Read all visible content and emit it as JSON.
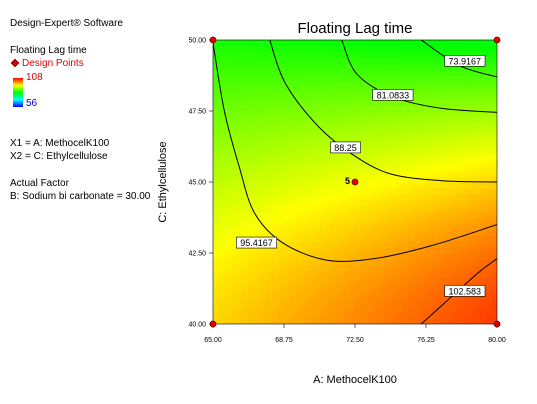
{
  "software": "Design-Expert® Software",
  "legend": {
    "response_title": "Floating Lag time",
    "design_points_label": "Design Points",
    "colorbar_max": "108",
    "colorbar_min": "56"
  },
  "factors": {
    "x1": "X1 = A: MethocelK100",
    "x2": "X2 = C: Ethylcellulose"
  },
  "actual_factor": {
    "heading": "Actual Factor",
    "value": "B: Sodium bi carbonate = 30.00"
  },
  "chart_data": {
    "type": "heatmap",
    "subtype": "contour",
    "title": "Floating Lag time",
    "xlabel": "A: MethocelK100",
    "ylabel": "C: Ethylcellulose",
    "xlim": [
      65.0,
      80.0
    ],
    "ylim": [
      40.0,
      50.0
    ],
    "x_ticks": [
      "65.00",
      "68.75",
      "72.50",
      "76.25",
      "80.00"
    ],
    "y_ticks": [
      "40.00",
      "42.50",
      "45.00",
      "47.50",
      "50.00"
    ],
    "colorbar_range": [
      56,
      108
    ],
    "colors": {
      "high": "#ff0000",
      "mid_high": "#ffff00",
      "mid": "#00ff00",
      "low": "#00ffff",
      "lowest": "#0000ff"
    },
    "contour_levels": [
      {
        "label": "73.9167",
        "level": 73.9167,
        "label_at": [
          78.3,
          49.25
        ],
        "points": [
          [
            76.0,
            50.0
          ],
          [
            78.0,
            49.1
          ],
          [
            80.0,
            48.7
          ]
        ]
      },
      {
        "label": "81.0833",
        "level": 81.0833,
        "label_at": [
          74.5,
          48.05
        ],
        "points": [
          [
            71.8,
            50.0
          ],
          [
            72.6,
            48.8
          ],
          [
            74.5,
            48.0
          ],
          [
            77.0,
            47.6
          ],
          [
            80.0,
            47.45
          ]
        ]
      },
      {
        "label": "88.25",
        "level": 88.25,
        "label_at": [
          72.0,
          46.2
        ],
        "points": [
          [
            68.0,
            50.0
          ],
          [
            68.8,
            48.5
          ],
          [
            70.5,
            47.0
          ],
          [
            72.3,
            46.0
          ],
          [
            74.3,
            45.3
          ],
          [
            77.0,
            45.05
          ],
          [
            80.0,
            45.0
          ]
        ]
      },
      {
        "label": "95.4167",
        "level": 95.4167,
        "label_at": [
          67.3,
          42.85
        ],
        "points": [
          [
            65.0,
            49.9
          ],
          [
            65.6,
            47.5
          ],
          [
            66.4,
            45.5
          ],
          [
            67.2,
            43.9
          ],
          [
            68.7,
            42.85
          ],
          [
            71.0,
            42.25
          ],
          [
            73.5,
            42.3
          ],
          [
            76.5,
            42.75
          ],
          [
            80.0,
            43.5
          ]
        ]
      },
      {
        "label": "102.583",
        "level": 102.583,
        "label_at": [
          78.3,
          41.15
        ],
        "points": [
          [
            76.0,
            40.0
          ],
          [
            77.5,
            40.9
          ],
          [
            79.0,
            41.8
          ],
          [
            80.0,
            42.3
          ]
        ]
      }
    ],
    "design_points": [
      {
        "x": 65.0,
        "y": 50.0
      },
      {
        "x": 80.0,
        "y": 50.0
      },
      {
        "x": 65.0,
        "y": 40.0
      },
      {
        "x": 80.0,
        "y": 40.0
      },
      {
        "x": 72.5,
        "y": 45.0,
        "label": "5"
      }
    ]
  }
}
